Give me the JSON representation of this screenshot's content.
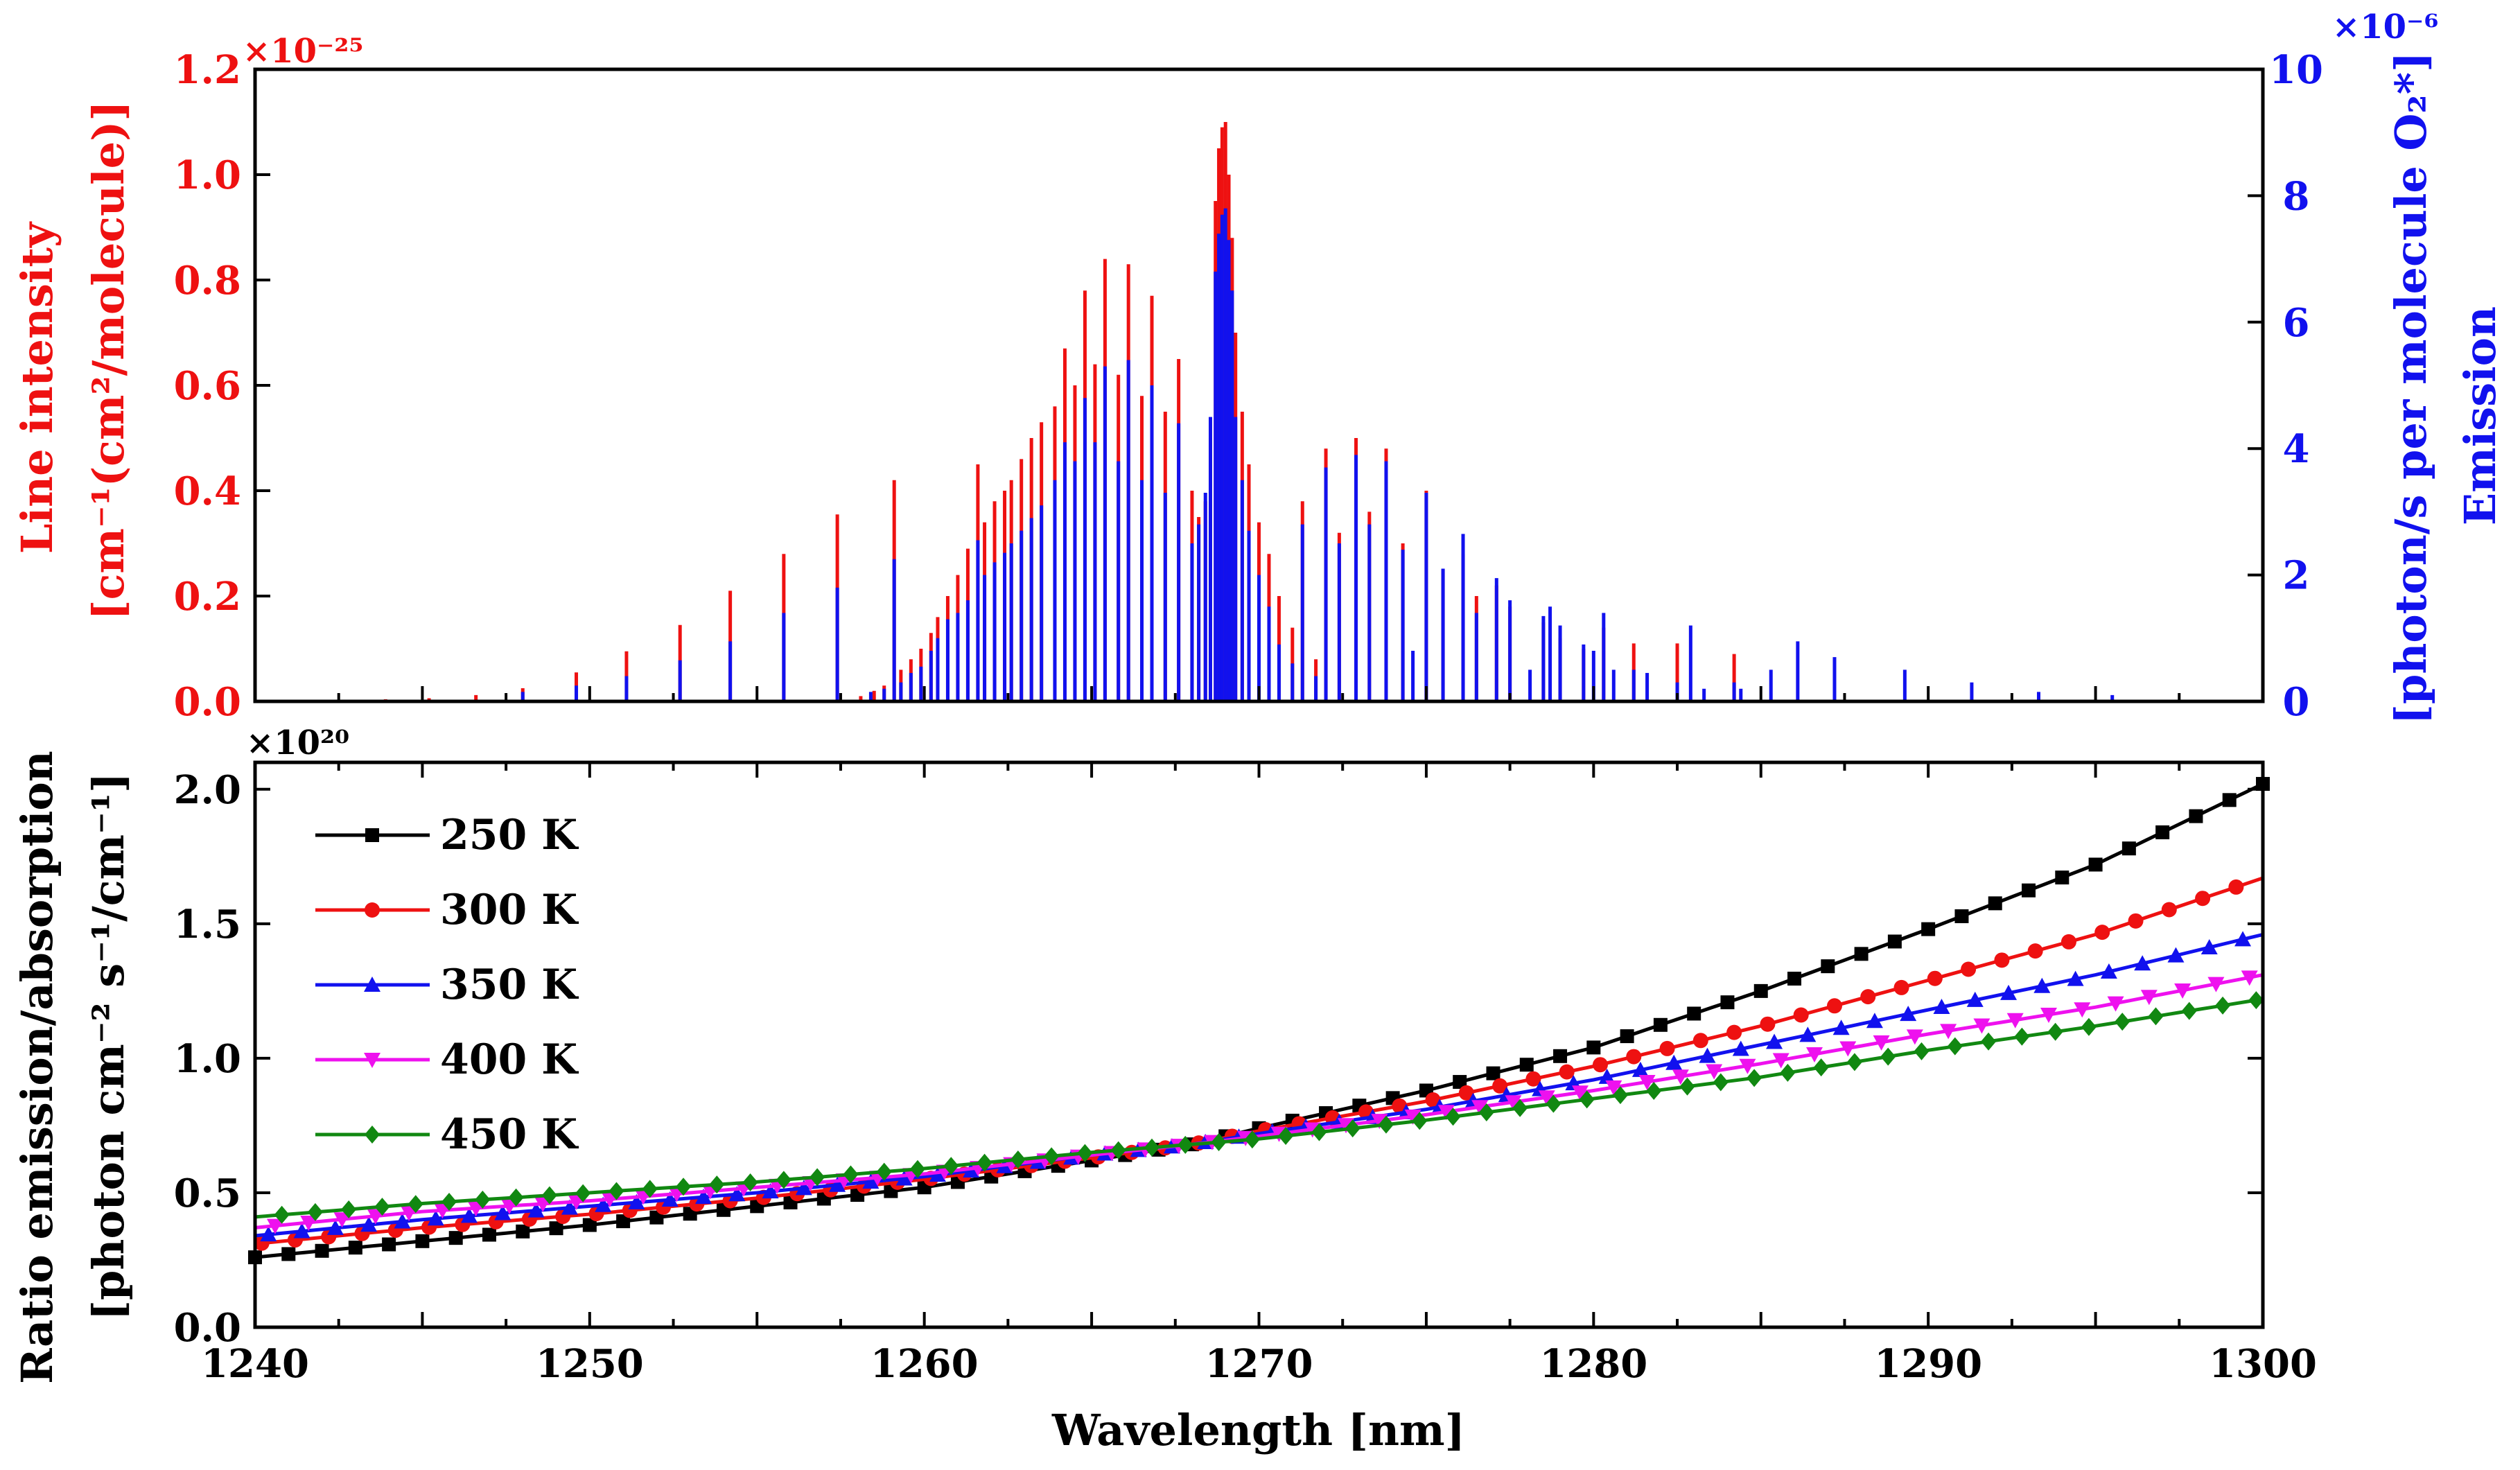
{
  "chart_data": [
    {
      "type": "bar",
      "panel": "top",
      "x_range": [
        1240,
        1300
      ],
      "left_axis": {
        "title_line1": "Line intensity",
        "title_line2": "[cm⁻¹(cm²/molecule)]",
        "multiplier": "×10⁻²⁵",
        "ylim": [
          0,
          1.2
        ],
        "ticks": [
          "0.0",
          "0.2",
          "0.4",
          "0.6",
          "0.8",
          "1.0",
          "1.2"
        ],
        "color": "#ee1111"
      },
      "right_axis": {
        "title_line1": "Emission",
        "title_line2": "[photon/s per molecule O₂*]",
        "multiplier": "×10⁻⁶",
        "ylim": [
          0,
          10
        ],
        "ticks": [
          "0",
          "2",
          "4",
          "6",
          "8",
          "10"
        ],
        "color": "#1111ee"
      },
      "series": [
        {
          "name": "Line intensity",
          "color": "#ee1111",
          "lines": [
            [
              1243.9,
              0.004
            ],
            [
              1245.2,
              0.006
            ],
            [
              1246.6,
              0.012
            ],
            [
              1248.0,
              0.025
            ],
            [
              1249.6,
              0.055
            ],
            [
              1251.1,
              0.095
            ],
            [
              1252.7,
              0.145
            ],
            [
              1254.2,
              0.21
            ],
            [
              1255.8,
              0.28
            ],
            [
              1257.4,
              0.355
            ],
            [
              1258.1,
              0.01
            ],
            [
              1258.5,
              0.02
            ],
            [
              1258.8,
              0.03
            ],
            [
              1259.1,
              0.42
            ],
            [
              1259.3,
              0.06
            ],
            [
              1259.6,
              0.08
            ],
            [
              1259.9,
              0.1
            ],
            [
              1260.2,
              0.13
            ],
            [
              1260.4,
              0.16
            ],
            [
              1260.7,
              0.2
            ],
            [
              1261.0,
              0.24
            ],
            [
              1261.3,
              0.29
            ],
            [
              1261.6,
              0.45
            ],
            [
              1261.8,
              0.34
            ],
            [
              1262.1,
              0.38
            ],
            [
              1262.4,
              0.4
            ],
            [
              1262.6,
              0.42
            ],
            [
              1262.9,
              0.46
            ],
            [
              1263.2,
              0.5
            ],
            [
              1263.5,
              0.53
            ],
            [
              1263.9,
              0.56
            ],
            [
              1264.2,
              0.67
            ],
            [
              1264.5,
              0.6
            ],
            [
              1264.8,
              0.78
            ],
            [
              1265.1,
              0.64
            ],
            [
              1265.4,
              0.84
            ],
            [
              1265.8,
              0.62
            ],
            [
              1266.1,
              0.83
            ],
            [
              1266.5,
              0.58
            ],
            [
              1266.8,
              0.77
            ],
            [
              1267.2,
              0.55
            ],
            [
              1267.6,
              0.65
            ],
            [
              1268.0,
              0.4
            ],
            [
              1268.2,
              0.35
            ],
            [
              1268.4,
              0.38
            ],
            [
              1268.55,
              0.5
            ],
            [
              1268.7,
              0.95
            ],
            [
              1268.8,
              1.05
            ],
            [
              1268.9,
              1.09
            ],
            [
              1269.0,
              1.1
            ],
            [
              1269.1,
              1.0
            ],
            [
              1269.2,
              0.88
            ],
            [
              1269.3,
              0.7
            ],
            [
              1269.5,
              0.55
            ],
            [
              1269.7,
              0.45
            ],
            [
              1270.0,
              0.34
            ],
            [
              1270.3,
              0.28
            ],
            [
              1270.6,
              0.2
            ],
            [
              1271.0,
              0.14
            ],
            [
              1271.3,
              0.38
            ],
            [
              1271.7,
              0.08
            ],
            [
              1272.0,
              0.48
            ],
            [
              1272.4,
              0.32
            ],
            [
              1272.9,
              0.5
            ],
            [
              1273.3,
              0.36
            ],
            [
              1273.8,
              0.48
            ],
            [
              1274.3,
              0.3
            ],
            [
              1275.0,
              0.4
            ],
            [
              1275.5,
              0.25
            ],
            [
              1276.1,
              0.28
            ],
            [
              1276.5,
              0.2
            ],
            [
              1277.1,
              0.22
            ],
            [
              1277.5,
              0.18
            ],
            [
              1278.5,
              0.15
            ],
            [
              1279.0,
              0.12
            ],
            [
              1279.7,
              0.1
            ],
            [
              1280.3,
              0.14
            ],
            [
              1281.2,
              0.11
            ],
            [
              1282.5,
              0.11
            ],
            [
              1284.2,
              0.09
            ]
          ]
        },
        {
          "name": "Emission",
          "color": "#1111ee",
          "lines": [
            [
              1248.0,
              0.15
            ],
            [
              1249.6,
              0.25
            ],
            [
              1251.1,
              0.4
            ],
            [
              1252.7,
              0.65
            ],
            [
              1254.2,
              0.95
            ],
            [
              1255.8,
              1.4
            ],
            [
              1257.4,
              1.8
            ],
            [
              1258.4,
              0.15
            ],
            [
              1258.8,
              0.2
            ],
            [
              1259.1,
              2.25
            ],
            [
              1259.3,
              0.3
            ],
            [
              1259.6,
              0.45
            ],
            [
              1259.9,
              0.55
            ],
            [
              1260.2,
              0.8
            ],
            [
              1260.4,
              1.0
            ],
            [
              1260.7,
              1.3
            ],
            [
              1261.0,
              1.4
            ],
            [
              1261.3,
              1.6
            ],
            [
              1261.6,
              2.55
            ],
            [
              1261.8,
              2.0
            ],
            [
              1262.1,
              2.2
            ],
            [
              1262.4,
              2.35
            ],
            [
              1262.6,
              2.5
            ],
            [
              1262.9,
              2.7
            ],
            [
              1263.2,
              2.9
            ],
            [
              1263.5,
              3.1
            ],
            [
              1263.9,
              3.5
            ],
            [
              1264.2,
              4.1
            ],
            [
              1264.5,
              3.8
            ],
            [
              1264.8,
              4.8
            ],
            [
              1265.1,
              4.1
            ],
            [
              1265.4,
              5.3
            ],
            [
              1265.8,
              3.8
            ],
            [
              1266.1,
              5.4
            ],
            [
              1266.5,
              3.5
            ],
            [
              1266.8,
              5.0
            ],
            [
              1267.2,
              3.3
            ],
            [
              1267.6,
              4.4
            ],
            [
              1268.0,
              2.5
            ],
            [
              1268.2,
              2.8
            ],
            [
              1268.4,
              3.3
            ],
            [
              1268.55,
              4.5
            ],
            [
              1268.7,
              6.8
            ],
            [
              1268.8,
              7.4
            ],
            [
              1268.9,
              7.7
            ],
            [
              1269.0,
              7.8
            ],
            [
              1269.1,
              7.3
            ],
            [
              1269.2,
              6.5
            ],
            [
              1269.3,
              4.5
            ],
            [
              1269.5,
              3.5
            ],
            [
              1269.7,
              2.7
            ],
            [
              1270.0,
              2.0
            ],
            [
              1270.3,
              1.5
            ],
            [
              1270.6,
              0.9
            ],
            [
              1271.0,
              0.6
            ],
            [
              1271.3,
              2.8
            ],
            [
              1271.7,
              0.4
            ],
            [
              1272.0,
              3.7
            ],
            [
              1272.4,
              2.5
            ],
            [
              1272.9,
              3.9
            ],
            [
              1273.3,
              2.8
            ],
            [
              1273.8,
              3.8
            ],
            [
              1274.3,
              2.4
            ],
            [
              1274.6,
              0.8
            ],
            [
              1275.0,
              3.3
            ],
            [
              1275.5,
              2.1
            ],
            [
              1276.1,
              2.65
            ],
            [
              1276.5,
              1.4
            ],
            [
              1277.1,
              1.95
            ],
            [
              1277.5,
              1.6
            ],
            [
              1278.1,
              0.5
            ],
            [
              1278.5,
              1.35
            ],
            [
              1278.7,
              1.5
            ],
            [
              1279.0,
              1.2
            ],
            [
              1279.7,
              0.9
            ],
            [
              1280.0,
              0.8
            ],
            [
              1280.3,
              1.4
            ],
            [
              1280.6,
              0.5
            ],
            [
              1281.2,
              0.5
            ],
            [
              1281.6,
              0.45
            ],
            [
              1282.5,
              0.3
            ],
            [
              1282.9,
              1.2
            ],
            [
              1283.3,
              0.2
            ],
            [
              1284.2,
              0.3
            ],
            [
              1284.4,
              0.2
            ],
            [
              1285.3,
              0.5
            ],
            [
              1286.1,
              0.95
            ],
            [
              1287.2,
              0.7
            ],
            [
              1289.3,
              0.5
            ],
            [
              1291.3,
              0.3
            ],
            [
              1293.3,
              0.15
            ],
            [
              1295.5,
              0.1
            ]
          ]
        }
      ]
    },
    {
      "type": "line",
      "panel": "bottom",
      "xlabel": "Wavelength [nm]",
      "ylabel_line1": "Ratio emission/absorption",
      "ylabel_line2": "[photon cm⁻² s⁻¹/cm⁻¹]",
      "multiplier": "×10²⁰",
      "xlim": [
        1240,
        1300
      ],
      "ylim": [
        0,
        2.1
      ],
      "xticks": [
        "1240",
        "1250",
        "1260",
        "1270",
        "1280",
        "1290",
        "1300"
      ],
      "yticks": [
        "0.0",
        "0.5",
        "1.0",
        "1.5",
        "2.0"
      ],
      "legend_position": "top-left",
      "series": [
        {
          "name": "250 K",
          "color": "#000000",
          "marker": "square",
          "x": [
            1240,
            1245,
            1250,
            1255,
            1260,
            1265,
            1268,
            1270,
            1275,
            1280,
            1285,
            1290,
            1295,
            1300
          ],
          "values": [
            0.26,
            0.32,
            0.38,
            0.45,
            0.52,
            0.62,
            0.68,
            0.74,
            0.88,
            1.04,
            1.25,
            1.48,
            1.72,
            2.02
          ]
        },
        {
          "name": "300 K",
          "color": "#ee1111",
          "marker": "circle",
          "x": [
            1240,
            1245,
            1250,
            1255,
            1260,
            1265,
            1268,
            1270,
            1275,
            1280,
            1285,
            1290,
            1295,
            1300
          ],
          "values": [
            0.31,
            0.37,
            0.42,
            0.48,
            0.55,
            0.63,
            0.68,
            0.73,
            0.84,
            0.97,
            1.12,
            1.29,
            1.46,
            1.67
          ]
        },
        {
          "name": "350 K",
          "color": "#1111ee",
          "marker": "triangle-up",
          "x": [
            1240,
            1245,
            1250,
            1255,
            1260,
            1265,
            1268,
            1270,
            1275,
            1280,
            1285,
            1290,
            1295,
            1300
          ],
          "values": [
            0.34,
            0.4,
            0.45,
            0.5,
            0.56,
            0.64,
            0.68,
            0.72,
            0.81,
            0.92,
            1.05,
            1.18,
            1.31,
            1.46
          ]
        },
        {
          "name": "400 K",
          "color": "#ee11ee",
          "marker": "triangle-down",
          "x": [
            1240,
            1245,
            1250,
            1255,
            1260,
            1265,
            1268,
            1270,
            1275,
            1280,
            1285,
            1290,
            1295,
            1300
          ],
          "values": [
            0.37,
            0.43,
            0.47,
            0.52,
            0.57,
            0.64,
            0.68,
            0.71,
            0.79,
            0.88,
            0.98,
            1.09,
            1.19,
            1.31
          ]
        },
        {
          "name": "450 K",
          "color": "#118811",
          "marker": "diamond",
          "x": [
            1240,
            1245,
            1250,
            1255,
            1260,
            1265,
            1268,
            1270,
            1275,
            1280,
            1285,
            1290,
            1295,
            1300
          ],
          "values": [
            0.41,
            0.46,
            0.5,
            0.54,
            0.59,
            0.65,
            0.68,
            0.7,
            0.77,
            0.85,
            0.93,
            1.03,
            1.12,
            1.22
          ]
        }
      ]
    }
  ]
}
